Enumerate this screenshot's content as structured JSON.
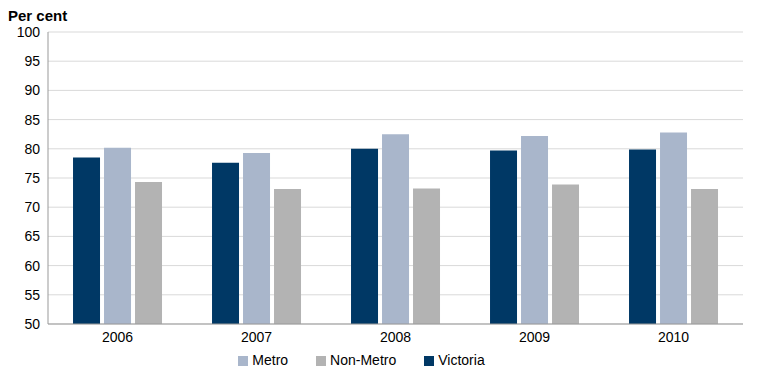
{
  "chart_data": {
    "type": "bar",
    "y_label": "Per cent",
    "categories": [
      "2006",
      "2007",
      "2008",
      "2009",
      "2010"
    ],
    "series": [
      {
        "name": "Victoria",
        "color": "#003865",
        "values": [
          78.5,
          77.6,
          80.0,
          79.7,
          79.9
        ]
      },
      {
        "name": "Metro",
        "color": "#a9b6cb",
        "values": [
          80.2,
          79.3,
          82.5,
          82.2,
          82.8
        ]
      },
      {
        "name": "Non-Metro",
        "color": "#b3b3b3",
        "values": [
          74.3,
          73.1,
          73.2,
          73.9,
          73.1
        ]
      }
    ],
    "ylim": [
      50,
      100
    ],
    "yticks": [
      50,
      55,
      60,
      65,
      70,
      75,
      80,
      85,
      90,
      95,
      100
    ],
    "grid": true,
    "legend": "bottom"
  }
}
